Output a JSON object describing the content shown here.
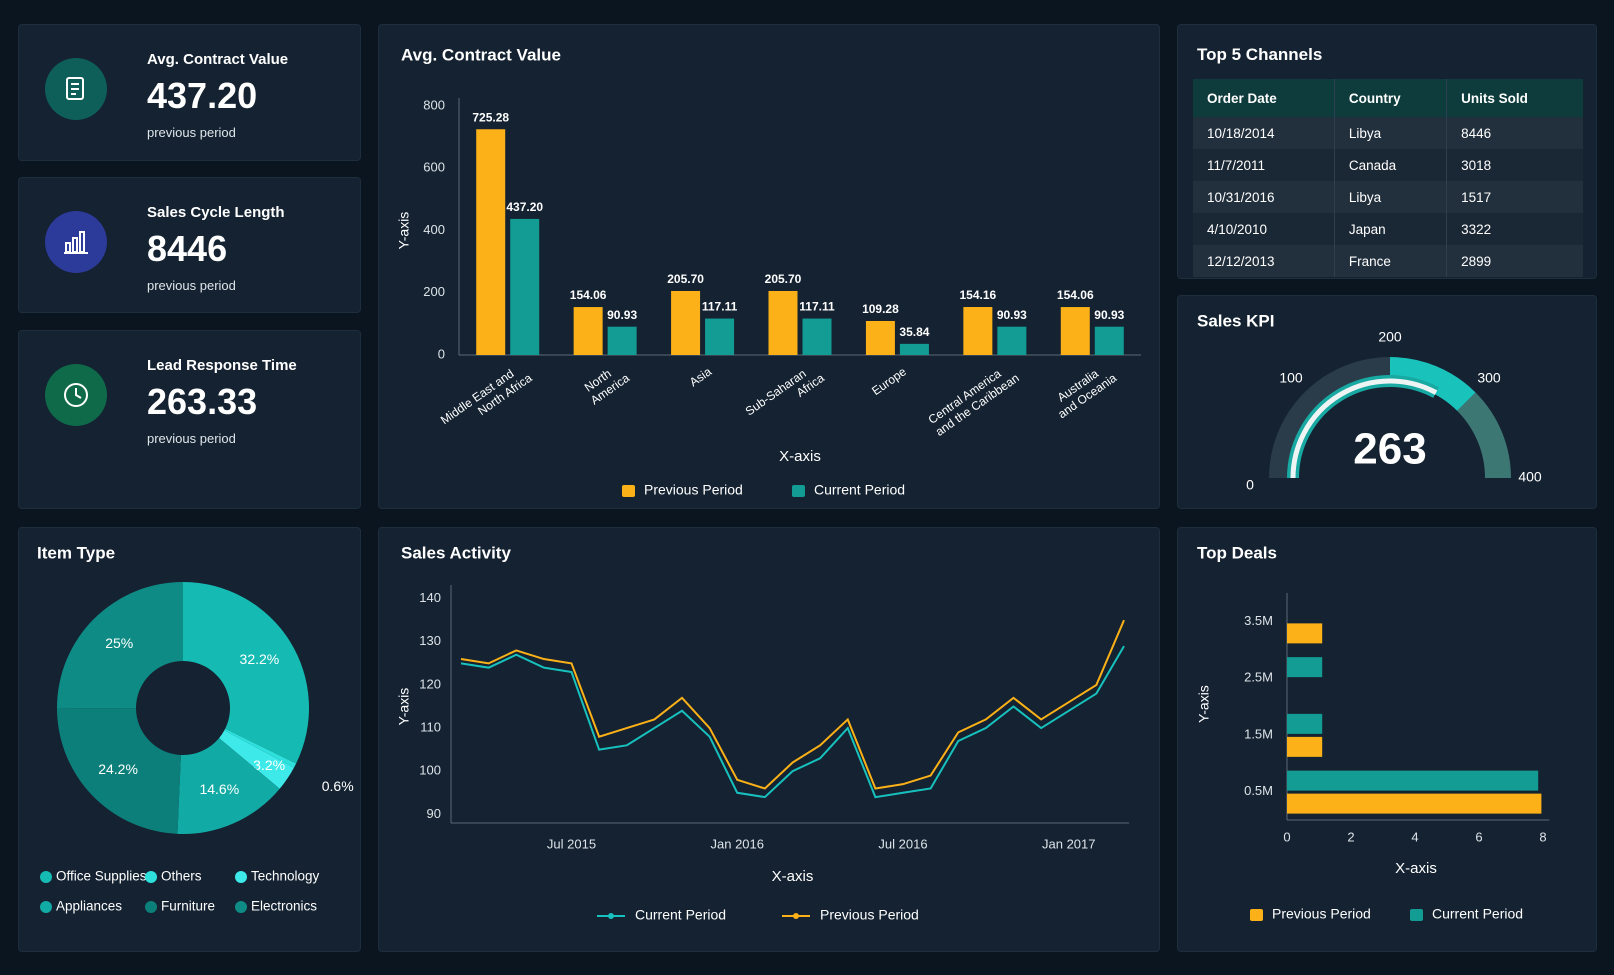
{
  "kpi_cards": [
    {
      "title": "Avg. Contract Value",
      "value": "437.20",
      "subtitle": "previous period"
    },
    {
      "title": "Sales Cycle Length",
      "value": "8446",
      "subtitle": "previous period"
    },
    {
      "title": "Lead Response Time",
      "value": "263.33",
      "subtitle": "previous period"
    }
  ],
  "top_channels": {
    "title": "Top 5 Channels",
    "columns": [
      "Order Date",
      "Country",
      "Units Sold"
    ],
    "rows": [
      [
        "10/18/2014",
        "Libya",
        8446
      ],
      [
        "11/7/2011",
        "Canada",
        3018
      ],
      [
        "10/31/2016",
        "Libya",
        1517
      ],
      [
        "4/10/2010",
        "Japan",
        3322
      ],
      [
        "12/12/2013",
        "France",
        2899
      ]
    ]
  },
  "chart_data": [
    {
      "type": "bar",
      "title": "Avg. Contract Value",
      "x_label": "X-axis",
      "y_label": "Y-axis",
      "categories": [
        "Middle East and North Africa",
        "North America",
        "Asia",
        "Sub-Saharan Africa",
        "Europe",
        "Central America and the Caribbean",
        "Australia and Oceania"
      ],
      "series": [
        {
          "name": "Previous Period",
          "color": "#fbb117",
          "values": [
            725.28,
            154.06,
            205.7,
            205.7,
            109.28,
            154.16,
            154.06
          ],
          "value_labels": [
            "725.28",
            "154.06",
            "205.70",
            "205.70",
            "109.28",
            "154.16",
            "154.06"
          ]
        },
        {
          "name": "Current Period",
          "color": "#139c94",
          "values": [
            437.2,
            90.93,
            117.11,
            117.11,
            35.84,
            90.93,
            90.93
          ],
          "value_labels": [
            "437.20",
            "90.93",
            "117.11",
            "117.11",
            "35.84",
            "90.93",
            "90.93"
          ]
        }
      ],
      "ylim": [
        0,
        800
      ],
      "yticks": [
        0,
        200,
        400,
        600,
        800
      ]
    },
    {
      "type": "gauge",
      "title": "Sales KPI",
      "value": 263,
      "lim": [
        0,
        400
      ],
      "ticks": [
        0,
        100,
        200,
        300,
        400
      ],
      "bands": [
        {
          "from": 0,
          "to": 200,
          "color": "#2a3b49"
        },
        {
          "from": 200,
          "to": 300,
          "color": "#19c3bb"
        },
        {
          "from": 300,
          "to": 400,
          "color": "#3d7774"
        }
      ]
    },
    {
      "type": "donut",
      "title": "Item Type",
      "categories": [
        "Office Supplies",
        "Others",
        "Technology",
        "Appliances",
        "Furniture",
        "Electronics"
      ],
      "values": [
        32.2,
        0.6,
        3.2,
        14.6,
        24.2,
        25
      ],
      "value_labels": [
        "32.2%",
        "0.6%",
        "3.2%",
        "14.6%",
        "24.2%",
        "25%"
      ],
      "colors": [
        "#15bbb3",
        "#2de0dc",
        "#3ee9ea",
        "#12aaa4",
        "#0d7f7a",
        "#0f8b85"
      ]
    },
    {
      "type": "line",
      "title": "Sales Activity",
      "x_label": "X-axis",
      "y_label": "Y-axis",
      "x": [
        "2015-03",
        "2015-04",
        "2015-05",
        "2015-06",
        "2015-07",
        "2015-08",
        "2015-09",
        "2015-10",
        "2015-11",
        "2015-12",
        "2016-01",
        "2016-02",
        "2016-03",
        "2016-04",
        "2016-05",
        "2016-06",
        "2016-07",
        "2016-08",
        "2016-09",
        "2016-10",
        "2016-11",
        "2016-12",
        "2017-01",
        "2017-02",
        "2017-03"
      ],
      "series": [
        {
          "name": "Current Period",
          "color": "#17c1bd",
          "values": [
            125,
            124,
            127,
            124,
            123,
            105,
            106,
            110,
            114,
            108,
            95,
            94,
            100,
            103,
            110,
            94,
            95,
            96,
            107,
            110,
            115,
            110,
            114,
            118,
            129
          ]
        },
        {
          "name": "Previous Period",
          "color": "#fbb117",
          "values": [
            126,
            125,
            128,
            126,
            125,
            108,
            110,
            112,
            117,
            110,
            98,
            96,
            102,
            106,
            112,
            96,
            97,
            99,
            109,
            112,
            117,
            112,
            116,
            120,
            135
          ]
        }
      ],
      "xlim": [
        "2015-03",
        "2017-03"
      ],
      "xticks": [
        {
          "value": "2015-07",
          "label": "Jul 2015"
        },
        {
          "value": "2016-01",
          "label": "Jan 2016"
        },
        {
          "value": "2016-07",
          "label": "Jul 2016"
        },
        {
          "value": "2017-01",
          "label": "Jan 2017"
        }
      ],
      "ylim": [
        88,
        142
      ],
      "yticks": [
        90,
        100,
        110,
        120,
        130,
        140
      ]
    },
    {
      "type": "hbar",
      "title": "Top Deals",
      "x_label": "X-axis",
      "y_label": "Y-axis",
      "categories": [
        "0.5M",
        "1.5M",
        "2.5M",
        "3.5M"
      ],
      "series": [
        {
          "name": "Previous Period",
          "color": "#fbb117",
          "values": [
            7.95,
            1.1,
            null,
            1.1
          ]
        },
        {
          "name": "Current Period",
          "color": "#139c94",
          "values": [
            7.85,
            1.1,
            1.1,
            null
          ]
        }
      ],
      "xlim": [
        0,
        8.2
      ],
      "xticks": [
        0,
        2,
        4,
        6,
        8
      ]
    }
  ]
}
